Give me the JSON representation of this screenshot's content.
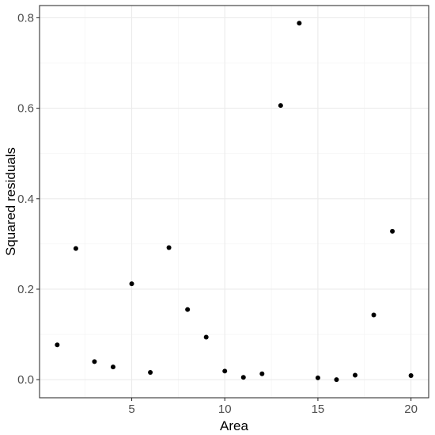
{
  "chart_data": {
    "type": "scatter",
    "xlabel": "Area",
    "ylabel": "Squared residuals",
    "xlim": [
      0.05,
      20.95
    ],
    "ylim": [
      -0.04,
      0.827
    ],
    "x_ticks": [
      5,
      10,
      15,
      20
    ],
    "x_minor_ticks": [
      2.5,
      7.5,
      12.5,
      17.5
    ],
    "y_ticks": [
      0.0,
      0.2,
      0.4,
      0.6,
      0.8
    ],
    "y_tick_labels": [
      "0.0",
      "0.2",
      "0.4",
      "0.6",
      "0.8"
    ],
    "y_minor_ticks": [
      0.1,
      0.3,
      0.5,
      0.7
    ],
    "grid": true,
    "point_color": "#000000",
    "points": [
      {
        "x": 1,
        "y": 0.077
      },
      {
        "x": 2,
        "y": 0.29
      },
      {
        "x": 3,
        "y": 0.04
      },
      {
        "x": 4,
        "y": 0.028
      },
      {
        "x": 5,
        "y": 0.212
      },
      {
        "x": 6,
        "y": 0.016
      },
      {
        "x": 7,
        "y": 0.292
      },
      {
        "x": 8,
        "y": 0.155
      },
      {
        "x": 9,
        "y": 0.094
      },
      {
        "x": 10,
        "y": 0.019
      },
      {
        "x": 11,
        "y": 0.005
      },
      {
        "x": 12,
        "y": 0.013
      },
      {
        "x": 13,
        "y": 0.606
      },
      {
        "x": 14,
        "y": 0.788
      },
      {
        "x": 15,
        "y": 0.004
      },
      {
        "x": 16,
        "y": 0.0
      },
      {
        "x": 17,
        "y": 0.01
      },
      {
        "x": 18,
        "y": 0.143
      },
      {
        "x": 19,
        "y": 0.328
      },
      {
        "x": 20,
        "y": 0.009
      }
    ]
  }
}
